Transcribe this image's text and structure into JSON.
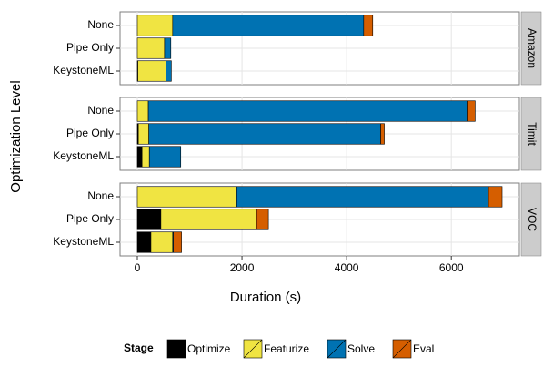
{
  "chart_data": {
    "type": "bar",
    "orientation": "horizontal",
    "stacked": true,
    "xlabel": "Duration (s)",
    "ylabel": "Optimization Level",
    "facets": [
      "Amazon",
      "Timit",
      "VOC"
    ],
    "categories": [
      "None",
      "Pipe Only",
      "KeystoneML"
    ],
    "legend_title": "Stage",
    "series": [
      {
        "name": "Optimize",
        "color": "#000000",
        "values": [
          [
            0,
            0,
            10
          ],
          [
            0,
            20,
            90
          ],
          [
            0,
            450,
            260
          ]
        ]
      },
      {
        "name": "Featurize",
        "color": "#f0e442",
        "values": [
          [
            675,
            520,
            540
          ],
          [
            210,
            200,
            140
          ],
          [
            1900,
            1830,
            415
          ]
        ]
      },
      {
        "name": "Solve",
        "color": "#0072b2",
        "values": [
          [
            3650,
            120,
            100
          ],
          [
            6090,
            4430,
            600
          ],
          [
            4810,
            0,
            15
          ]
        ]
      },
      {
        "name": "Eval",
        "color": "#d55e00",
        "values": [
          [
            173,
            0,
            0
          ],
          [
            155,
            70,
            0
          ],
          [
            260,
            225,
            155
          ]
        ]
      }
    ],
    "xlim": [
      -330,
      7300
    ],
    "xticks": [
      0,
      2000,
      4000,
      6000
    ],
    "grid": true
  }
}
